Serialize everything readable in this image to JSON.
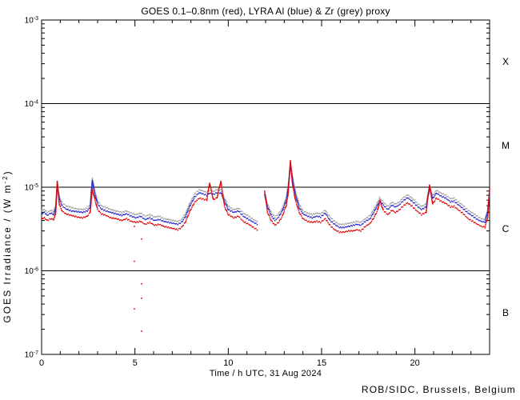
{
  "page": {
    "background": "#ffffff"
  },
  "footer": {
    "credit": "ROB/SIDC, Brussels, Belgium"
  },
  "chart_data": {
    "type": "scatter",
    "title": "GOES 0.1–0.8nm (red), LYRA Al (blue) & Zr (grey) proxy",
    "xlabel": "Time / h UTC, 31 Aug 2024",
    "ylabel": "GOES Irradiance / (W m^-2)",
    "xlim_hours": [
      0,
      24
    ],
    "ylim": [
      1e-07,
      0.001
    ],
    "y_scale": "log",
    "grid": false,
    "frame_color": "#000000",
    "x_major_ticks": [
      {
        "value": 0,
        "label": "0"
      },
      {
        "value": 5,
        "label": "5"
      },
      {
        "value": 10,
        "label": "10"
      },
      {
        "value": 15,
        "label": "15"
      },
      {
        "value": 20,
        "label": "20"
      }
    ],
    "x_minor_tick_step_hours": 1,
    "y_major_ticks": [
      {
        "value": 0.001,
        "label": "10^-3"
      },
      {
        "value": 0.0001,
        "label": "10^-4"
      },
      {
        "value": 1e-05,
        "label": "10^-5"
      },
      {
        "value": 1e-06,
        "label": "10^-6"
      },
      {
        "value": 1e-07,
        "label": "10^-7"
      }
    ],
    "flare_class_lines": [
      0.0001,
      1e-05,
      1e-06
    ],
    "flare_class_labels": [
      "X",
      "M",
      "C",
      "B"
    ],
    "values_unit": "1e-6 W m^-2",
    "values_unit_scale": 1e-06,
    "x_hours": [
      0.0,
      0.15,
      0.3,
      0.5,
      0.65,
      0.75,
      0.84,
      0.95,
      1.1,
      1.3,
      1.6,
      1.9,
      2.2,
      2.45,
      2.6,
      2.72,
      2.85,
      3.0,
      3.2,
      3.45,
      3.7,
      4.0,
      4.3,
      4.55,
      4.8,
      5.05,
      5.3,
      5.55,
      5.8,
      6.05,
      6.3,
      6.55,
      6.8,
      7.05,
      7.3,
      7.5,
      7.7,
      7.95,
      8.2,
      8.45,
      8.65,
      8.85,
      9.0,
      9.2,
      9.4,
      9.6,
      9.8,
      10.0,
      10.3,
      10.55,
      10.8,
      11.1,
      11.35,
      11.55,
      11.75,
      11.95,
      12.1,
      12.3,
      12.5,
      12.7,
      12.9,
      13.1,
      13.2,
      13.33,
      13.45,
      13.6,
      13.8,
      14.0,
      14.25,
      14.5,
      14.75,
      14.95,
      15.2,
      15.45,
      15.7,
      15.95,
      16.2,
      16.45,
      16.7,
      16.9,
      17.1,
      17.35,
      17.6,
      17.8,
      18.0,
      18.12,
      18.3,
      18.55,
      18.77,
      18.95,
      19.15,
      19.35,
      19.6,
      19.85,
      20.1,
      20.35,
      20.6,
      20.78,
      20.95,
      21.15,
      21.4,
      21.65,
      21.9,
      22.1,
      22.35,
      22.6,
      22.85,
      23.1,
      23.35,
      23.55,
      23.75,
      23.9,
      24.0
    ],
    "series": [
      {
        "name": "GOES 0.1-0.8nm",
        "color": "#dd0000",
        "values": [
          4.2,
          4.3,
          4.0,
          4.2,
          4.1,
          4.8,
          11.6,
          6.2,
          5.2,
          4.8,
          4.6,
          4.4,
          4.3,
          4.5,
          5.0,
          9.5,
          7.2,
          5.4,
          4.8,
          4.6,
          4.3,
          4.2,
          4.0,
          4.2,
          3.9,
          3.8,
          3.9,
          3.6,
          3.8,
          3.5,
          3.6,
          3.4,
          3.3,
          3.2,
          3.1,
          3.3,
          3.8,
          5.2,
          6.6,
          7.4,
          7.2,
          7.0,
          11.3,
          7.1,
          7.5,
          11.8,
          5.9,
          4.7,
          4.3,
          4.5,
          3.9,
          3.6,
          3.3,
          3.1,
          null,
          9.0,
          5.0,
          4.0,
          3.5,
          3.8,
          4.5,
          6.0,
          8.0,
          20.5,
          10.4,
          7.0,
          5.0,
          4.2,
          3.9,
          3.8,
          3.9,
          3.8,
          4.2,
          3.5,
          3.1,
          2.9,
          2.9,
          3.0,
          3.0,
          3.1,
          3.0,
          3.4,
          3.7,
          4.3,
          5.3,
          6.9,
          5.3,
          4.7,
          5.3,
          5.0,
          5.3,
          5.9,
          6.5,
          5.9,
          5.2,
          4.7,
          5.0,
          10.7,
          6.3,
          7.4,
          6.8,
          6.4,
          5.8,
          5.9,
          5.3,
          4.8,
          4.2,
          3.9,
          3.6,
          3.4,
          3.3,
          4.4,
          9.6
        ]
      },
      {
        "name": "LYRA Al proxy",
        "color": "#2222cc",
        "values": [
          4.8,
          5.0,
          4.6,
          4.9,
          4.7,
          5.5,
          10.4,
          7.2,
          6.0,
          5.5,
          5.2,
          5.1,
          5.0,
          5.2,
          5.7,
          12.0,
          8.3,
          6.3,
          5.5,
          5.2,
          5.0,
          4.8,
          4.6,
          4.8,
          4.5,
          4.3,
          4.5,
          4.1,
          4.3,
          4.0,
          4.1,
          3.9,
          3.8,
          3.7,
          3.6,
          3.8,
          4.4,
          6.0,
          7.6,
          8.6,
          8.3,
          8.0,
          8.5,
          8.2,
          8.6,
          8.5,
          6.8,
          5.4,
          5.0,
          5.2,
          4.5,
          4.1,
          3.8,
          3.6,
          null,
          8.1,
          5.8,
          4.6,
          4.0,
          4.4,
          5.2,
          6.9,
          9.2,
          18.4,
          12.0,
          8.1,
          5.7,
          4.8,
          4.5,
          4.3,
          4.5,
          4.4,
          4.9,
          4.0,
          3.6,
          3.3,
          3.3,
          3.4,
          3.5,
          3.6,
          3.5,
          3.9,
          4.2,
          5.0,
          6.1,
          6.9,
          6.1,
          5.4,
          6.1,
          5.8,
          6.1,
          6.8,
          7.5,
          6.8,
          6.0,
          5.4,
          5.8,
          9.6,
          7.3,
          8.5,
          7.8,
          7.4,
          6.7,
          6.8,
          6.1,
          5.5,
          4.9,
          4.5,
          4.1,
          3.9,
          3.8,
          5.1,
          8.3
        ]
      },
      {
        "name": "LYRA Zr proxy",
        "color": "#a0a0a0",
        "values": [
          5.2,
          5.4,
          5.0,
          5.3,
          5.1,
          6.0,
          11.3,
          7.8,
          6.5,
          6.0,
          5.7,
          5.5,
          5.4,
          5.6,
          6.2,
          13.0,
          9.0,
          6.8,
          6.0,
          5.7,
          5.4,
          5.2,
          5.0,
          5.2,
          4.9,
          4.7,
          4.9,
          4.5,
          4.7,
          4.4,
          4.5,
          4.2,
          4.1,
          4.0,
          3.9,
          4.1,
          4.8,
          6.5,
          8.3,
          9.3,
          9.0,
          8.7,
          9.2,
          8.9,
          9.4,
          9.2,
          7.4,
          5.9,
          5.4,
          5.6,
          4.9,
          4.5,
          4.1,
          3.9,
          null,
          8.8,
          6.3,
          5.0,
          4.4,
          4.8,
          5.6,
          7.5,
          10.0,
          20.0,
          13.0,
          8.8,
          6.2,
          5.2,
          4.9,
          4.7,
          4.9,
          4.8,
          5.3,
          4.4,
          3.9,
          3.6,
          3.6,
          3.7,
          3.8,
          3.9,
          3.8,
          4.2,
          4.6,
          5.4,
          6.6,
          7.5,
          6.6,
          5.9,
          6.6,
          6.3,
          6.6,
          7.4,
          8.1,
          7.4,
          6.5,
          5.9,
          6.3,
          10.4,
          7.9,
          9.2,
          8.5,
          8.0,
          7.3,
          7.4,
          6.6,
          6.0,
          5.3,
          4.9,
          4.5,
          4.2,
          4.1,
          5.5,
          9.0
        ]
      }
    ],
    "red_dropout_points": [
      [
        4.97,
        3.4
      ],
      [
        4.97,
        1.3
      ],
      [
        4.97,
        0.35
      ],
      [
        5.36,
        2.4
      ],
      [
        5.36,
        0.7
      ],
      [
        5.36,
        0.47
      ],
      [
        5.36,
        0.19
      ]
    ]
  }
}
